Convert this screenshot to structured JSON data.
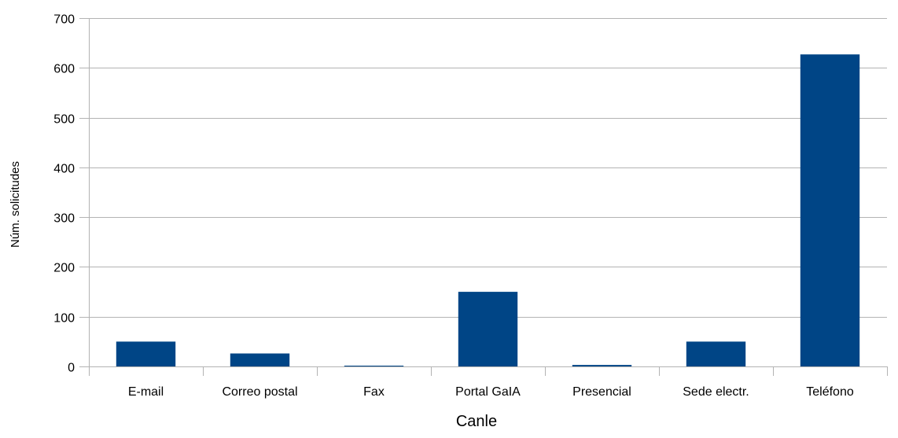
{
  "chart_data": {
    "type": "bar",
    "title": "",
    "xlabel": "Canle",
    "ylabel": "Núm. solicitudes",
    "categories": [
      "E-mail",
      "Correo postal",
      "Fax",
      "Portal GaIA",
      "Presencial",
      "Sede electr.",
      "Teléfono"
    ],
    "values": [
      50,
      26,
      1,
      150,
      3,
      50,
      627
    ],
    "ylim": [
      0,
      700
    ],
    "yticks": [
      0,
      100,
      200,
      300,
      400,
      500,
      600,
      700
    ],
    "grid": true,
    "legend": "none",
    "bar_color": "#004586",
    "grid_color": "#b3b3b3"
  }
}
